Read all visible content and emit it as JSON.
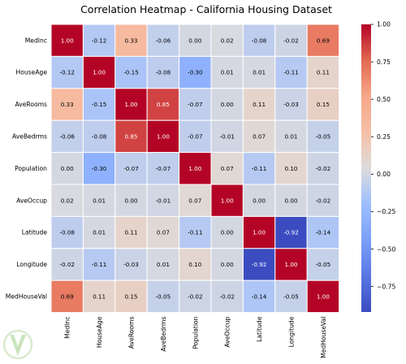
{
  "chart_data": {
    "type": "heatmap",
    "title": "Correlation Heatmap - California Housing Dataset",
    "rows": [
      "MedInc",
      "HouseAge",
      "AveRooms",
      "AveBedrms",
      "Population",
      "AveOccup",
      "Latitude",
      "Longitude",
      "MedHouseVal"
    ],
    "columns": [
      "MedInc",
      "HouseAge",
      "AveRooms",
      "AveBedrms",
      "Population",
      "AveOccup",
      "Latitude",
      "Longitude",
      "MedHouseVal"
    ],
    "values": [
      [
        1.0,
        -0.12,
        0.33,
        -0.06,
        0.0,
        0.02,
        -0.08,
        -0.02,
        0.69
      ],
      [
        -0.12,
        1.0,
        -0.15,
        -0.08,
        -0.3,
        0.01,
        0.01,
        -0.11,
        0.11
      ],
      [
        0.33,
        -0.15,
        1.0,
        0.85,
        -0.07,
        -0.0,
        0.11,
        -0.03,
        0.15
      ],
      [
        -0.06,
        -0.08,
        0.85,
        1.0,
        -0.07,
        -0.01,
        0.07,
        0.01,
        -0.05
      ],
      [
        0.0,
        -0.3,
        -0.07,
        -0.07,
        1.0,
        0.07,
        -0.11,
        0.1,
        -0.02
      ],
      [
        0.02,
        0.01,
        -0.0,
        -0.01,
        0.07,
        1.0,
        0.0,
        0.0,
        -0.02
      ],
      [
        -0.08,
        0.01,
        0.11,
        0.07,
        -0.11,
        0.0,
        1.0,
        -0.92,
        -0.14
      ],
      [
        -0.02,
        -0.11,
        -0.03,
        0.01,
        0.1,
        0.0,
        -0.92,
        1.0,
        -0.05
      ],
      [
        0.69,
        0.11,
        0.15,
        -0.05,
        -0.02,
        -0.02,
        -0.14,
        -0.05,
        1.0
      ]
    ],
    "value_format": "0.00",
    "colormap": "coolwarm",
    "vmin": -0.92,
    "vmax": 1.0,
    "colorbar": {
      "ticks": [
        1.0,
        0.75,
        0.5,
        0.25,
        0.0,
        -0.25,
        -0.5,
        -0.75
      ],
      "tick_labels": [
        "1.00",
        "0.75",
        "0.50",
        "0.25",
        "0.00",
        "−0.25",
        "−0.50",
        "−0.75"
      ],
      "placement": "right"
    },
    "grid": "white cell borders",
    "x_tick_rotation": "vertical"
  }
}
